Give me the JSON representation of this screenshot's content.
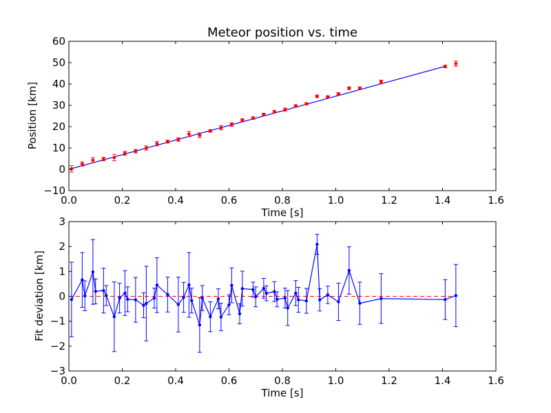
{
  "colors": {
    "fit_line": "#0000ff",
    "points": "#ff0000",
    "errorbar_top": "#ff0000",
    "residual": "#0000ff",
    "zero_line": "#ff0000"
  },
  "chart_data": [
    {
      "type": "scatter",
      "title": "Meteor position vs. time",
      "xlabel": "Time [s]",
      "ylabel": "Position [km]",
      "xlim": [
        0.0,
        1.6
      ],
      "ylim": [
        -10,
        60
      ],
      "xticks": [
        "0.0",
        "0.2",
        "0.4",
        "0.6",
        "0.8",
        "1.0",
        "1.2",
        "1.4",
        "1.6"
      ],
      "yticks": [
        "−10",
        "0",
        "10",
        "20",
        "30",
        "40",
        "50",
        "60"
      ],
      "grid": false,
      "series": [
        {
          "style": "points with error bars",
          "x": [
            0.01,
            0.05,
            0.09,
            0.13,
            0.17,
            0.21,
            0.25,
            0.29,
            0.33,
            0.37,
            0.41,
            0.45,
            0.49,
            0.53,
            0.57,
            0.61,
            0.65,
            0.69,
            0.73,
            0.77,
            0.81,
            0.85,
            0.89,
            0.93,
            0.97,
            1.01,
            1.05,
            1.09,
            1.17,
            1.41,
            1.45
          ],
          "y": [
            0.2,
            2.5,
            4.3,
            4.8,
            5.5,
            7.5,
            8.5,
            10.0,
            12.0,
            13.0,
            14.0,
            16.5,
            16.0,
            18.0,
            19.5,
            21.0,
            23.0,
            24.0,
            25.7,
            27.0,
            28.0,
            29.7,
            30.7,
            34.2,
            34.0,
            35.3,
            38.0,
            38.0,
            41.0,
            48.2,
            49.5
          ],
          "yerr": [
            1.5,
            1.0,
            1.2,
            0.8,
            1.5,
            0.9,
            0.8,
            1.0,
            1.0,
            0.7,
            0.8,
            1.2,
            1.1,
            0.6,
            1.0,
            0.8,
            0.7,
            0.6,
            0.6,
            0.6,
            0.7,
            0.6,
            0.5,
            0.6,
            0.4,
            0.6,
            0.6,
            0.6,
            0.8,
            0.6,
            1.2
          ]
        },
        {
          "style": "fitted line",
          "x": [
            0.0,
            1.41
          ],
          "y": [
            0.0,
            48.3
          ]
        }
      ]
    },
    {
      "type": "line",
      "xlabel": "Time [s]",
      "ylabel": "Fit deviation [km]",
      "xlim": [
        0.0,
        1.6
      ],
      "ylim": [
        -3,
        3
      ],
      "xticks": [
        "0.0",
        "0.2",
        "0.4",
        "0.6",
        "0.8",
        "1.0",
        "1.2",
        "1.4",
        "1.6"
      ],
      "yticks": [
        "−3",
        "−2",
        "−1",
        "0",
        "1",
        "2",
        "3"
      ],
      "grid": false,
      "series": [
        {
          "style": "line with markers and error bars",
          "x": [
            0.01,
            0.05,
            0.06,
            0.09,
            0.1,
            0.13,
            0.14,
            0.17,
            0.19,
            0.21,
            0.22,
            0.25,
            0.28,
            0.29,
            0.32,
            0.33,
            0.37,
            0.41,
            0.43,
            0.45,
            0.46,
            0.49,
            0.5,
            0.53,
            0.56,
            0.57,
            0.6,
            0.61,
            0.64,
            0.65,
            0.69,
            0.7,
            0.73,
            0.74,
            0.77,
            0.78,
            0.81,
            0.82,
            0.85,
            0.86,
            0.89,
            0.93,
            0.94,
            0.97,
            1.01,
            1.05,
            1.09,
            1.17,
            1.41,
            1.45
          ],
          "y": [
            -0.13,
            0.66,
            0.02,
            0.98,
            0.2,
            0.23,
            0.03,
            -0.82,
            -0.07,
            0.13,
            -0.12,
            -0.14,
            -0.36,
            -0.29,
            -0.07,
            0.45,
            0.07,
            -0.33,
            -0.04,
            0.46,
            -0.17,
            -1.15,
            -0.07,
            -0.82,
            -0.1,
            -0.83,
            -0.34,
            0.44,
            -0.7,
            0.31,
            0.27,
            -0.02,
            0.32,
            0.12,
            0.19,
            -0.12,
            -0.07,
            -0.47,
            0.13,
            -0.14,
            -0.18,
            2.09,
            -0.14,
            0.06,
            -0.22,
            1.04,
            -0.28,
            -0.09,
            -0.13,
            0.03
          ],
          "yerr": [
            1.5,
            1.1,
            0.6,
            1.3,
            0.5,
            0.9,
            0.4,
            1.4,
            0.6,
            0.9,
            0.5,
            0.9,
            0.5,
            1.5,
            0.4,
            1.1,
            0.7,
            1.1,
            0.6,
            1.3,
            0.5,
            1.1,
            0.5,
            0.6,
            0.4,
            0.55,
            0.4,
            0.7,
            0.4,
            0.7,
            0.3,
            0.4,
            0.4,
            0.3,
            0.4,
            0.3,
            0.4,
            0.7,
            0.5,
            0.5,
            0.5,
            0.4,
            0.45,
            0.35,
            0.75,
            0.95,
            0.85,
            1.0,
            0.8,
            1.25
          ]
        },
        {
          "style": "dashed reference line",
          "x": [
            0.0,
            1.45
          ],
          "y": [
            0.0,
            0.0
          ]
        }
      ]
    }
  ]
}
